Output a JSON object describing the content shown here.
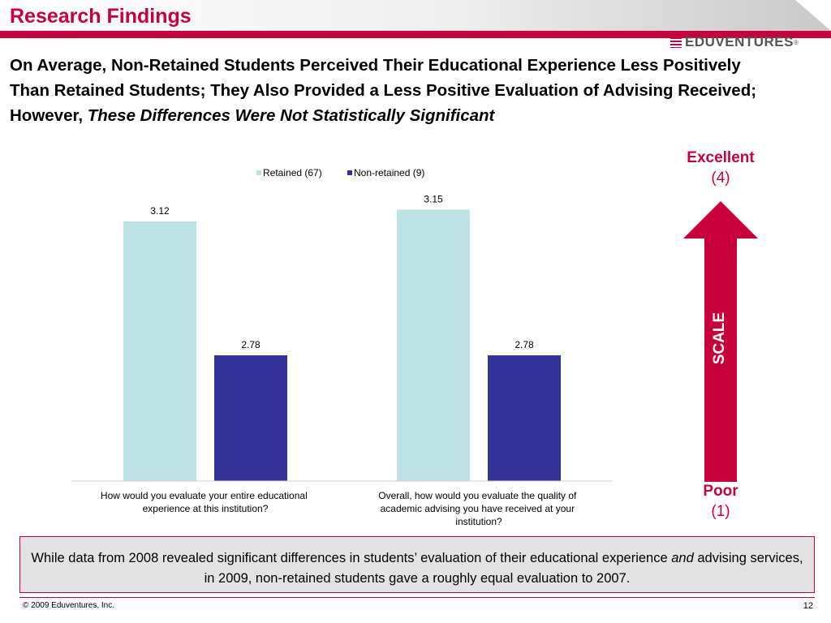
{
  "header": {
    "section_title": "Research Findings",
    "logo_text": "EDUVENTURES",
    "logo_mark": "®"
  },
  "headline": {
    "part1": "On Average, Non-Retained Students Perceived Their Educational Experience Less Positively Than Retained Students; They Also Provided a Less Positive Evaluation of Advising Received; However, ",
    "emphasis": "These Differences Were Not Statistically Significant"
  },
  "colors": {
    "accent": "#c8003c",
    "retained": "#bde2e4",
    "non_retained": "#343399"
  },
  "chart_data": {
    "type": "bar",
    "title": "",
    "xlabel": "",
    "ylabel": "",
    "ylim": [
      0,
      4
    ],
    "grid": false,
    "legend_position": "top",
    "categories": [
      "How would you evaluate your entire educational experience at this institution?",
      "Overall, how would you evaluate the quality of academic advising you have received at your institution?"
    ],
    "series": [
      {
        "name": "Retained (67)",
        "color": "#bde2e4",
        "values": [
          3.12,
          3.15
        ]
      },
      {
        "name": "Non-retained (9)",
        "color": "#343399",
        "values": [
          2.78,
          2.78
        ]
      }
    ],
    "data_labels": [
      [
        "3.12",
        "3.15"
      ],
      [
        "2.78",
        "2.78"
      ]
    ]
  },
  "scale": {
    "top_word": "Excellent",
    "top_num": "(4)",
    "label": "SCALE",
    "bottom_word": "Poor",
    "bottom_num": "(1)"
  },
  "note": {
    "part1": "While data from 2008 revealed significant differences in students’ evaluation of their educational experience ",
    "italic": "and",
    "part2": " advising services, in 2009, non-retained students gave a roughly equal evaluation to 2007."
  },
  "footer": {
    "copyright": "© 2009 Eduventures, Inc.",
    "page": "12"
  }
}
